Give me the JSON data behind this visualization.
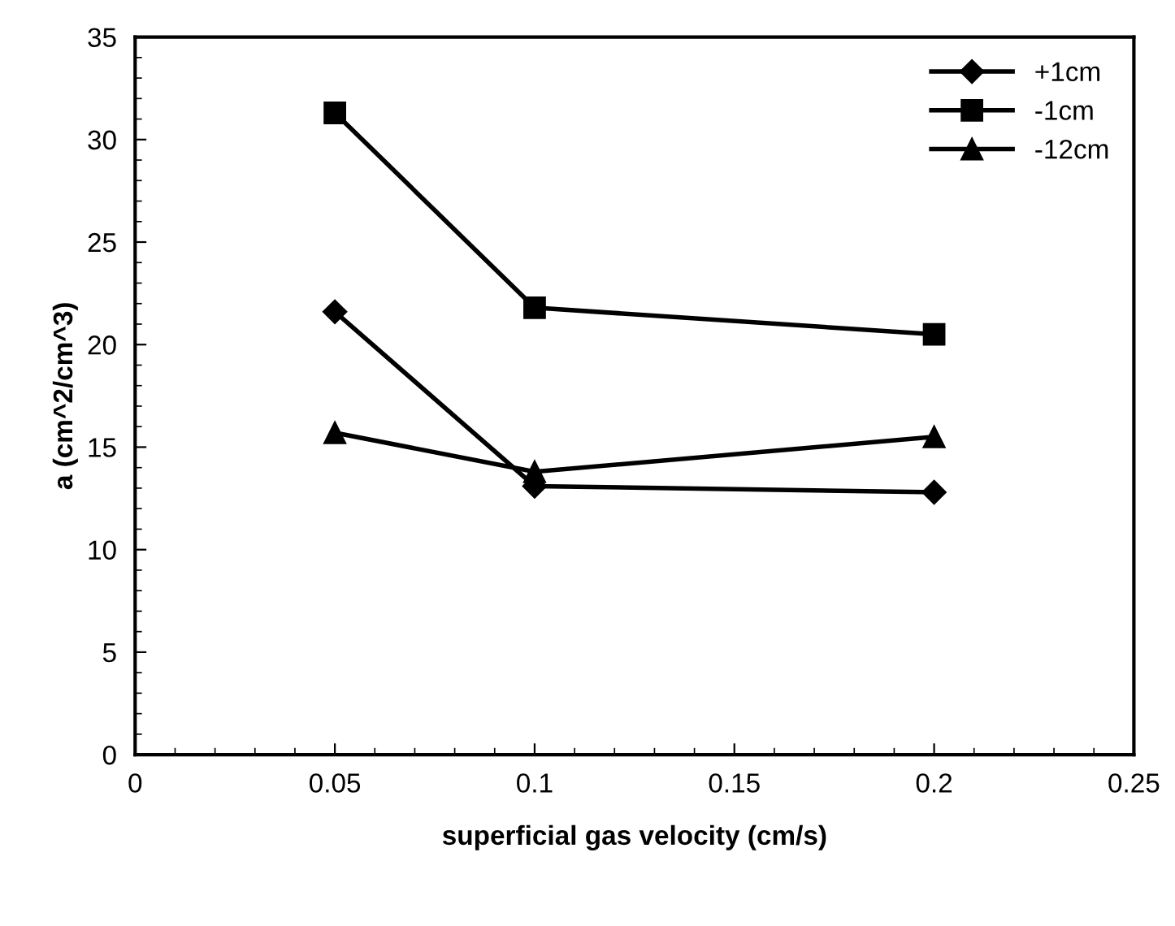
{
  "chart_data": {
    "type": "line",
    "xlabel": "superficial gas velocity (cm/s)",
    "ylabel": "a (cm^2/cm^3)",
    "x": [
      0.05,
      0.1,
      0.2
    ],
    "series": [
      {
        "name": "+1cm",
        "color": "#000000",
        "marker": "diamond",
        "values": [
          21.6,
          13.1,
          12.8
        ]
      },
      {
        "name": "-1cm",
        "color": "#000000",
        "marker": "square",
        "values": [
          31.3,
          21.8,
          20.5
        ]
      },
      {
        "name": "-12cm",
        "color": "#000000",
        "marker": "triangle",
        "values": [
          15.7,
          13.8,
          15.5
        ]
      }
    ],
    "xlim": [
      0,
      0.25
    ],
    "xticks": [
      0,
      0.05,
      0.1,
      0.15,
      0.2,
      0.25
    ],
    "ylim": [
      0,
      35
    ],
    "yticks": [
      0,
      5,
      10,
      15,
      20,
      25,
      30,
      35
    ],
    "grid": false,
    "legend": "top right",
    "line_style": "solid"
  }
}
